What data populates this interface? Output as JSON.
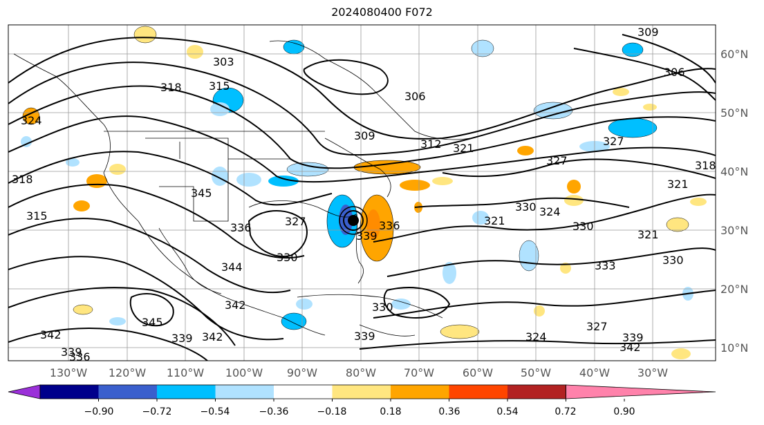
{
  "title": "2024080400 F072",
  "lat_labels": [
    "60°N",
    "50°N",
    "40°N",
    "30°N",
    "20°N",
    "10°N"
  ],
  "lon_labels": [
    "130°W",
    "120°W",
    "110°W",
    "100°W",
    "90°W",
    "80°W",
    "70°W",
    "60°W",
    "50°W",
    "40°W",
    "30°W"
  ],
  "colorbar": {
    "ticks": [
      "−0.90",
      "−0.72",
      "−0.54",
      "−0.36",
      "−0.18",
      "0.18",
      "0.36",
      "0.54",
      "0.72",
      "0.90"
    ],
    "colors": [
      "#9b30d9",
      "#00008b",
      "#3a5fcd",
      "#00bfff",
      "#b0e2ff",
      "#ffffff",
      "#ffe680",
      "#ffa500",
      "#ff4500",
      "#b22222",
      "#ff82ab"
    ]
  },
  "contour_labels": [
    "303",
    "309",
    "306",
    "318",
    "315",
    "306",
    "309",
    "312",
    "321",
    "327",
    "327",
    "318",
    "321",
    "324",
    "318",
    "315",
    "345",
    "336",
    "327",
    "330",
    "339",
    "336",
    "330",
    "324",
    "330",
    "321",
    "333",
    "330",
    "321",
    "344",
    "342",
    "345",
    "339",
    "342",
    "342",
    "339",
    "336",
    "330",
    "339",
    "324",
    "327",
    "342",
    "339"
  ]
}
